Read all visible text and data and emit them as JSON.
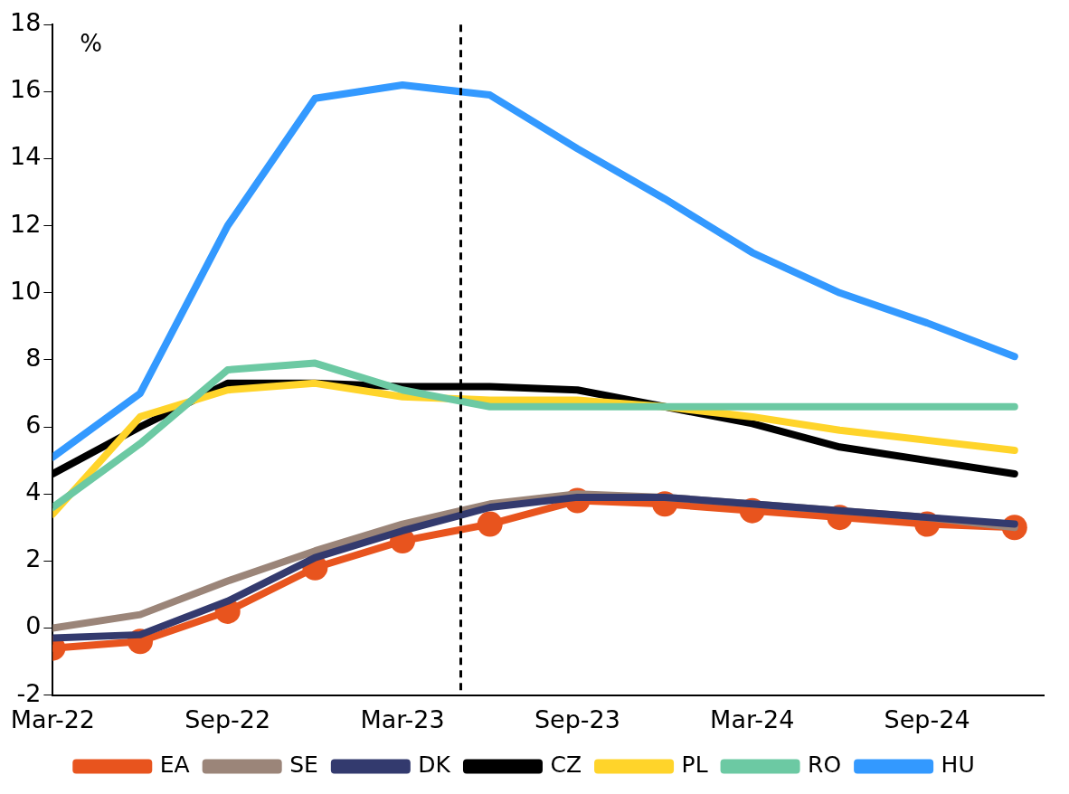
{
  "chart_data": {
    "type": "line",
    "ylabel": "%",
    "x": [
      "2022-03",
      "2022-06",
      "2022-09",
      "2022-12",
      "2023-03",
      "2023-06",
      "2023-09",
      "2023-12",
      "2024-03",
      "2024-06",
      "2024-09",
      "2024-12"
    ],
    "series": [
      {
        "name": "EA",
        "color": "#e8541e",
        "marker": "circle",
        "values": [
          -0.6,
          -0.4,
          0.5,
          1.8,
          2.6,
          3.1,
          3.8,
          3.7,
          3.5,
          3.3,
          3.1,
          3.0
        ]
      },
      {
        "name": "SE",
        "color": "#9b8579",
        "values": [
          0.0,
          0.4,
          1.4,
          2.3,
          3.1,
          3.7,
          4.0,
          3.9,
          3.7,
          3.5,
          3.3,
          3.0
        ]
      },
      {
        "name": "DK",
        "color": "#333a6e",
        "values": [
          -0.3,
          -0.2,
          0.8,
          2.1,
          2.9,
          3.6,
          3.9,
          3.9,
          3.7,
          3.5,
          3.3,
          3.1
        ]
      },
      {
        "name": "CZ",
        "color": "#000000",
        "values": [
          4.6,
          6.0,
          7.3,
          7.3,
          7.2,
          7.2,
          7.1,
          6.6,
          6.1,
          5.4,
          5.0,
          4.6
        ]
      },
      {
        "name": "PL",
        "color": "#ffd42a",
        "values": [
          3.4,
          6.3,
          7.1,
          7.3,
          6.9,
          6.8,
          6.8,
          6.6,
          6.3,
          5.9,
          5.6,
          5.3
        ]
      },
      {
        "name": "RO",
        "color": "#6cc9a3",
        "values": [
          3.6,
          5.5,
          7.7,
          7.9,
          7.1,
          6.6,
          6.6,
          6.6,
          6.6,
          6.6,
          6.6,
          6.6
        ]
      },
      {
        "name": "HU",
        "color": "#3399ff",
        "values": [
          5.1,
          7.0,
          12.0,
          15.8,
          16.2,
          15.9,
          14.3,
          12.8,
          11.2,
          10.0,
          9.1,
          8.1
        ]
      }
    ],
    "xlim": [
      "2022-03",
      "2025-01"
    ],
    "xticks": [
      {
        "value": "2022-03",
        "label": "Mar-22"
      },
      {
        "value": "2022-09",
        "label": "Sep-22"
      },
      {
        "value": "2023-03",
        "label": "Mar-23"
      },
      {
        "value": "2023-09",
        "label": "Sep-23"
      },
      {
        "value": "2024-03",
        "label": "Mar-24"
      },
      {
        "value": "2024-09",
        "label": "Sep-24"
      }
    ],
    "ylim": [
      -2,
      18
    ],
    "yticks": [
      -2,
      0,
      2,
      4,
      6,
      8,
      10,
      12,
      14,
      16,
      18
    ],
    "ref_lines": [
      {
        "axis": "x",
        "value": "2023-05",
        "color": "#000000",
        "line_style": "dashed"
      }
    ],
    "grid": false,
    "legend": "bottom",
    "marker": "none",
    "line_style": "solid"
  }
}
